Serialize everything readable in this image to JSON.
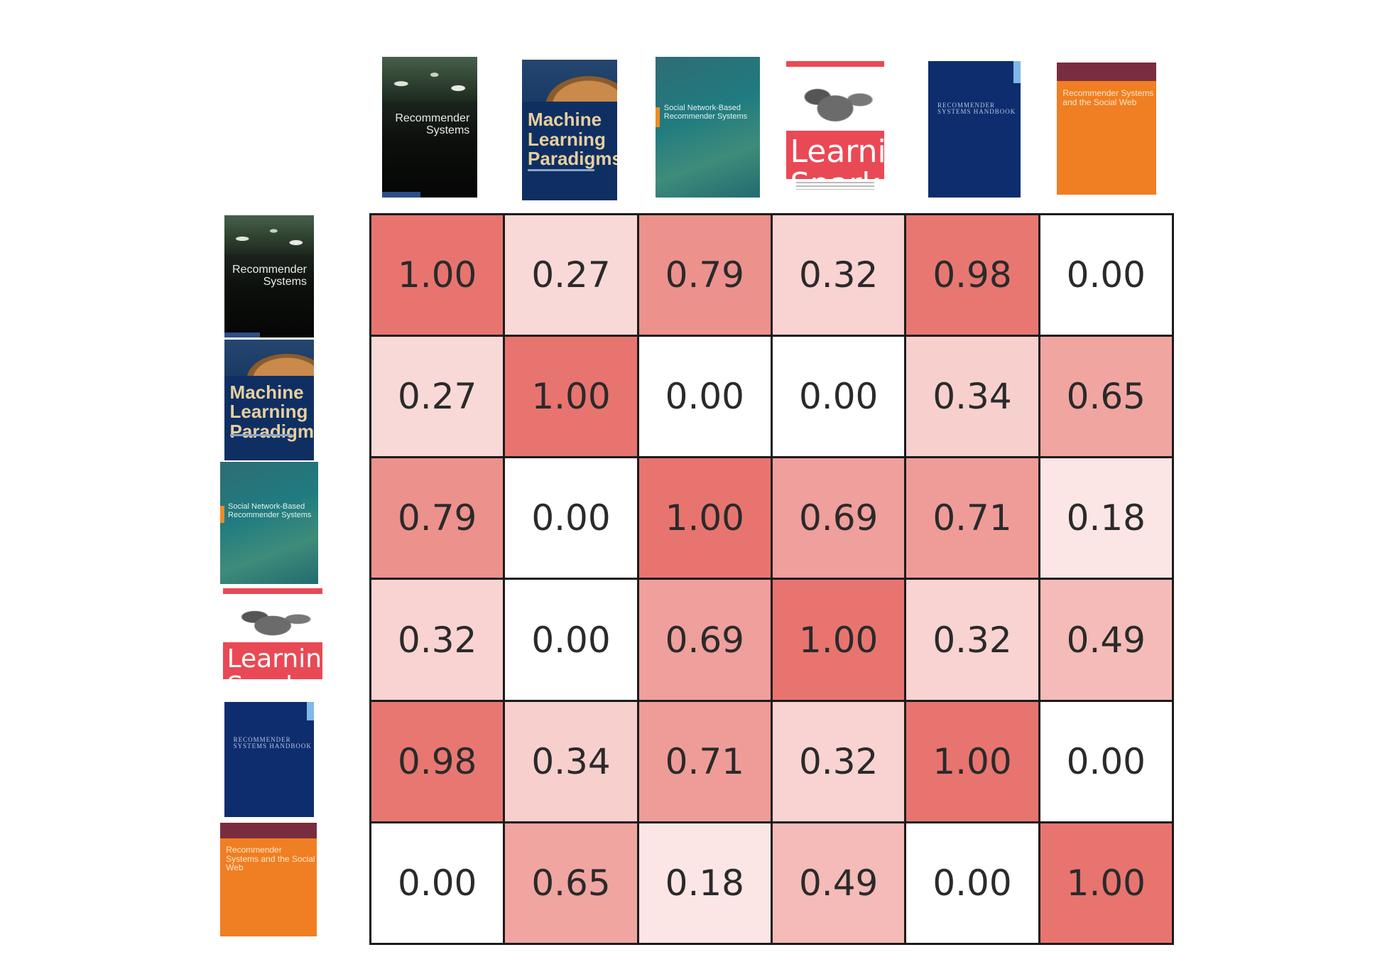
{
  "chart_data": {
    "type": "heatmap",
    "row_labels": [
      "Recommender Systems",
      "Machine Learning Paradigms",
      "Social Network-Based Recommender Systems",
      "Learning Spark",
      "Recommender Systems Handbook",
      "Recommender Systems and the Social Web"
    ],
    "col_labels": [
      "Recommender Systems",
      "Machine Learning Paradigms",
      "Social Network-Based Recommender Systems",
      "Learning Spark",
      "Recommender Systems Handbook",
      "Recommender Systems and the Social Web"
    ],
    "values": [
      [
        1.0,
        0.27,
        0.79,
        0.32,
        0.98,
        0.0
      ],
      [
        0.27,
        1.0,
        0.0,
        0.0,
        0.34,
        0.65
      ],
      [
        0.79,
        0.0,
        1.0,
        0.69,
        0.71,
        0.18
      ],
      [
        0.32,
        0.0,
        0.69,
        1.0,
        0.32,
        0.49
      ],
      [
        0.98,
        0.34,
        0.71,
        0.32,
        1.0,
        0.0
      ],
      [
        0.0,
        0.65,
        0.18,
        0.49,
        0.0,
        1.0
      ]
    ],
    "value_range": [
      0,
      1
    ],
    "color_low": "#ffffff",
    "color_high": "#e8746f"
  },
  "covers": {
    "rec": {
      "title": "Recommender Systems"
    },
    "ml": {
      "title": "Machine Learning Paradigms"
    },
    "sn": {
      "title": "Social Network-Based Recommender Systems"
    },
    "sp": {
      "title": "Learning Spark"
    },
    "rh": {
      "title": "RECOMMENDER SYSTEMS HANDBOOK"
    },
    "sw": {
      "title": "Recommender Systems and the Social Web"
    }
  }
}
